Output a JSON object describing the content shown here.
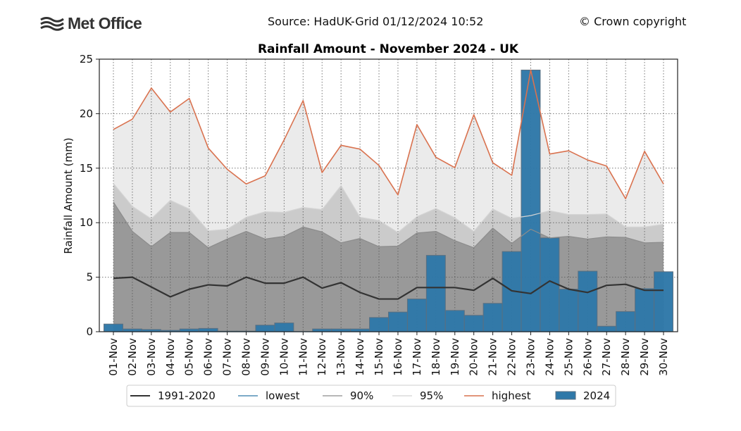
{
  "header": {
    "logo_text": "Met Office",
    "source": "Source: HadUK-Grid 01/12/2024 10:52",
    "copyright": "© Crown copyright"
  },
  "colors": {
    "bar": "#2e78a8",
    "bar_edge": "#5a6f80",
    "mean_line": "#333333",
    "lowest_line": "#2e78a8",
    "p90_line": "#8c8c8c",
    "p95_line": "#d4d4d4",
    "highest_line": "#d9724f",
    "band_low_90": "#999999",
    "band_90_95": "#cbcbcb",
    "band_95_high": "#ebebeb"
  },
  "chart_data": {
    "type": "bar",
    "title": "Rainfall Amount - November 2024 - UK",
    "xlabel": "",
    "ylabel": "Rainfall Amount (mm)",
    "ylim": [
      0,
      25
    ],
    "yticks": [
      0,
      5,
      10,
      15,
      20,
      25
    ],
    "grid": true,
    "legend_position": "bottom-center",
    "categories": [
      "01-Nov",
      "02-Nov",
      "03-Nov",
      "04-Nov",
      "05-Nov",
      "06-Nov",
      "07-Nov",
      "08-Nov",
      "09-Nov",
      "10-Nov",
      "11-Nov",
      "12-Nov",
      "13-Nov",
      "14-Nov",
      "15-Nov",
      "16-Nov",
      "17-Nov",
      "18-Nov",
      "19-Nov",
      "20-Nov",
      "21-Nov",
      "22-Nov",
      "23-Nov",
      "24-Nov",
      "25-Nov",
      "26-Nov",
      "27-Nov",
      "28-Nov",
      "29-Nov",
      "30-Nov"
    ],
    "series": [
      {
        "name": "1991-2020",
        "type": "line",
        "values": [
          4.9,
          5.0,
          4.1,
          3.2,
          3.9,
          4.3,
          4.2,
          5.0,
          4.45,
          4.45,
          5.0,
          4.0,
          4.5,
          3.6,
          3.0,
          3.0,
          4.05,
          4.05,
          4.05,
          3.8,
          4.9,
          3.75,
          3.5,
          4.65,
          3.9,
          3.6,
          4.25,
          4.35,
          3.8,
          3.8
        ]
      },
      {
        "name": "lowest",
        "type": "line",
        "values": [
          0,
          0,
          0,
          0,
          0,
          0,
          0,
          0,
          0,
          0,
          0,
          0,
          0,
          0,
          0,
          0,
          0,
          0,
          0,
          0,
          0,
          0,
          0,
          0,
          0,
          0,
          0,
          0,
          0,
          0
        ]
      },
      {
        "name": "90%",
        "type": "line",
        "values": [
          11.9,
          9.2,
          7.8,
          9.1,
          9.1,
          7.7,
          8.5,
          9.2,
          8.5,
          8.75,
          9.6,
          9.15,
          8.15,
          8.55,
          7.8,
          7.85,
          9.05,
          9.2,
          8.35,
          7.7,
          9.5,
          8.1,
          9.4,
          8.6,
          8.75,
          8.5,
          8.7,
          8.65,
          8.15,
          8.2
        ]
      },
      {
        "name": "95%",
        "type": "line",
        "values": [
          13.6,
          11.5,
          10.35,
          12.05,
          11.25,
          9.25,
          9.4,
          10.5,
          11.0,
          10.95,
          11.4,
          11.2,
          13.4,
          10.5,
          10.2,
          9.1,
          10.55,
          11.3,
          10.45,
          9.2,
          11.25,
          10.4,
          10.65,
          11.1,
          10.75,
          10.75,
          10.8,
          9.6,
          9.6,
          9.85
        ]
      },
      {
        "name": "highest",
        "type": "line",
        "values": [
          18.55,
          19.5,
          22.35,
          20.15,
          21.4,
          16.85,
          14.9,
          13.55,
          14.3,
          17.6,
          21.2,
          14.6,
          17.1,
          16.75,
          15.25,
          12.55,
          19.0,
          16.0,
          15.05,
          19.9,
          15.5,
          14.35,
          24.0,
          16.3,
          16.6,
          15.75,
          15.2,
          12.2,
          16.55,
          13.55
        ]
      },
      {
        "name": "2024",
        "type": "bar",
        "values": [
          0.7,
          0.25,
          0.2,
          0.12,
          0.25,
          0.3,
          0.05,
          0.05,
          0.6,
          0.8,
          0.0,
          0.25,
          0.25,
          0.25,
          1.3,
          1.8,
          3.0,
          7.0,
          1.95,
          1.5,
          2.6,
          7.35,
          24.0,
          8.6,
          3.9,
          5.55,
          0.5,
          1.85,
          3.95,
          5.5
        ]
      }
    ],
    "legend": [
      "1991-2020",
      "lowest",
      "90%",
      "95%",
      "highest",
      "2024"
    ]
  }
}
